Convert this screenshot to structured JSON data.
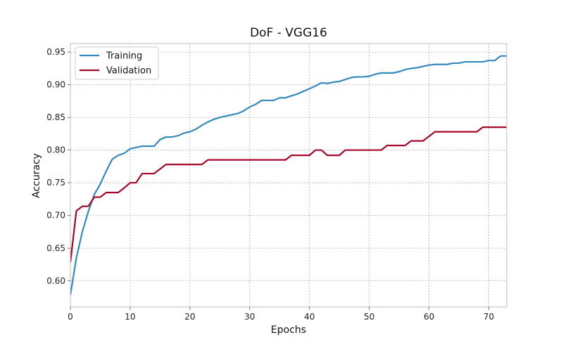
{
  "chart_data": {
    "type": "line",
    "title": "DoF - VGG16",
    "xlabel": "Epochs",
    "ylabel": "Accuracy",
    "xlim": [
      0,
      73
    ],
    "ylim": [
      0.56,
      0.963
    ],
    "xticks": [
      0,
      10,
      20,
      30,
      40,
      50,
      60,
      70
    ],
    "yticks": [
      0.6,
      0.65,
      0.7,
      0.75,
      0.8,
      0.85,
      0.9,
      0.95
    ],
    "ytick_labels": [
      "0.60",
      "0.65",
      "0.70",
      "0.75",
      "0.80",
      "0.85",
      "0.90",
      "0.95"
    ],
    "grid": true,
    "legend_position": "top-left",
    "series": [
      {
        "name": "Training",
        "color": "#348ABD",
        "x": [
          0,
          1,
          2,
          3,
          4,
          5,
          6,
          7,
          8,
          9,
          10,
          11,
          12,
          13,
          14,
          15,
          16,
          17,
          18,
          19,
          20,
          21,
          22,
          23,
          24,
          25,
          26,
          27,
          28,
          29,
          30,
          31,
          32,
          33,
          34,
          35,
          36,
          37,
          38,
          39,
          40,
          41,
          42,
          43,
          44,
          45,
          46,
          47,
          48,
          49,
          50,
          51,
          52,
          53,
          54,
          55,
          56,
          57,
          58,
          59,
          60,
          61,
          62,
          63,
          64,
          65,
          66,
          67,
          68,
          69,
          70,
          71,
          72,
          73
        ],
        "values": [
          0.578,
          0.635,
          0.675,
          0.706,
          0.732,
          0.748,
          0.768,
          0.786,
          0.792,
          0.795,
          0.802,
          0.804,
          0.806,
          0.806,
          0.806,
          0.816,
          0.82,
          0.82,
          0.822,
          0.826,
          0.828,
          0.832,
          0.838,
          0.843,
          0.847,
          0.85,
          0.852,
          0.854,
          0.856,
          0.86,
          0.866,
          0.87,
          0.876,
          0.876,
          0.876,
          0.88,
          0.88,
          0.883,
          0.886,
          0.89,
          0.894,
          0.898,
          0.903,
          0.902,
          0.904,
          0.905,
          0.908,
          0.911,
          0.912,
          0.912,
          0.913,
          0.916,
          0.918,
          0.918,
          0.918,
          0.92,
          0.923,
          0.925,
          0.926,
          0.928,
          0.93,
          0.931,
          0.931,
          0.931,
          0.933,
          0.933,
          0.935,
          0.935,
          0.935,
          0.935,
          0.937,
          0.937,
          0.944,
          0.944
        ]
      },
      {
        "name": "Validation",
        "color": "#A60628",
        "x": [
          0,
          1,
          2,
          3,
          4,
          5,
          6,
          7,
          8,
          9,
          10,
          11,
          12,
          13,
          14,
          15,
          16,
          17,
          18,
          19,
          20,
          21,
          22,
          23,
          24,
          25,
          26,
          27,
          28,
          29,
          30,
          31,
          32,
          33,
          34,
          35,
          36,
          37,
          38,
          39,
          40,
          41,
          42,
          43,
          44,
          45,
          46,
          47,
          48,
          49,
          50,
          51,
          52,
          53,
          54,
          55,
          56,
          57,
          58,
          59,
          60,
          61,
          62,
          63,
          64,
          65,
          66,
          67,
          68,
          69,
          70,
          71,
          72,
          73
        ],
        "values": [
          0.628,
          0.707,
          0.714,
          0.714,
          0.728,
          0.728,
          0.735,
          0.735,
          0.735,
          0.742,
          0.75,
          0.75,
          0.764,
          0.764,
          0.764,
          0.771,
          0.778,
          0.778,
          0.778,
          0.778,
          0.778,
          0.778,
          0.778,
          0.785,
          0.785,
          0.785,
          0.785,
          0.785,
          0.785,
          0.785,
          0.785,
          0.785,
          0.785,
          0.785,
          0.785,
          0.785,
          0.785,
          0.792,
          0.792,
          0.792,
          0.792,
          0.8,
          0.8,
          0.792,
          0.792,
          0.792,
          0.8,
          0.8,
          0.8,
          0.8,
          0.8,
          0.8,
          0.8,
          0.807,
          0.807,
          0.807,
          0.807,
          0.814,
          0.814,
          0.814,
          0.821,
          0.828,
          0.828,
          0.828,
          0.828,
          0.828,
          0.828,
          0.828,
          0.828,
          0.835,
          0.835,
          0.835,
          0.835,
          0.835
        ]
      }
    ]
  }
}
